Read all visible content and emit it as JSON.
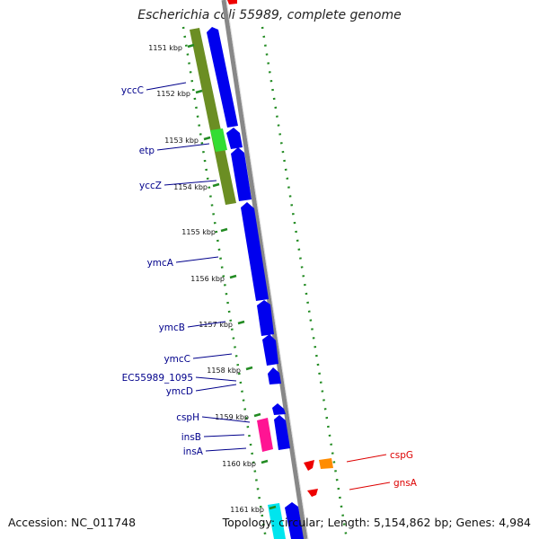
{
  "title": "Escherichia coli 55989, complete genome",
  "footer": {
    "accession": "Accession: NC_011748",
    "topology": "Topology: circular; Length: 5,154,862 bp; Genes: 4,984"
  },
  "ticks": [
    "1151 kbp",
    "1152 kbp",
    "1153 kbp",
    "1154 kbp",
    "1155 kbp",
    "1156 kbp",
    "1157 kbp",
    "1158 kbp",
    "1159 kbp",
    "1160 kbp",
    "1161 kbp"
  ],
  "genes_left": [
    "yccC",
    "etp",
    "yccZ",
    "ymcA",
    "ymcB",
    "ymcC",
    "EC55989_1095",
    "ymcD",
    "cspH",
    "insB",
    "insA"
  ],
  "genes_right": [
    "cspG",
    "gnsA"
  ],
  "colors": {
    "cds_forward": "#0000ee",
    "olive_feature": "#6b8e23",
    "green_feature": "#33dd33",
    "mobile_element": "#ff1493",
    "red_gene": "#ee0000",
    "orange_gene": "#ff8c00",
    "cyan_feature": "#00e5ee",
    "backbone": "#888888",
    "tick_green": "#228b22",
    "left_label": "#00008b",
    "right_label": "#dd0000"
  }
}
